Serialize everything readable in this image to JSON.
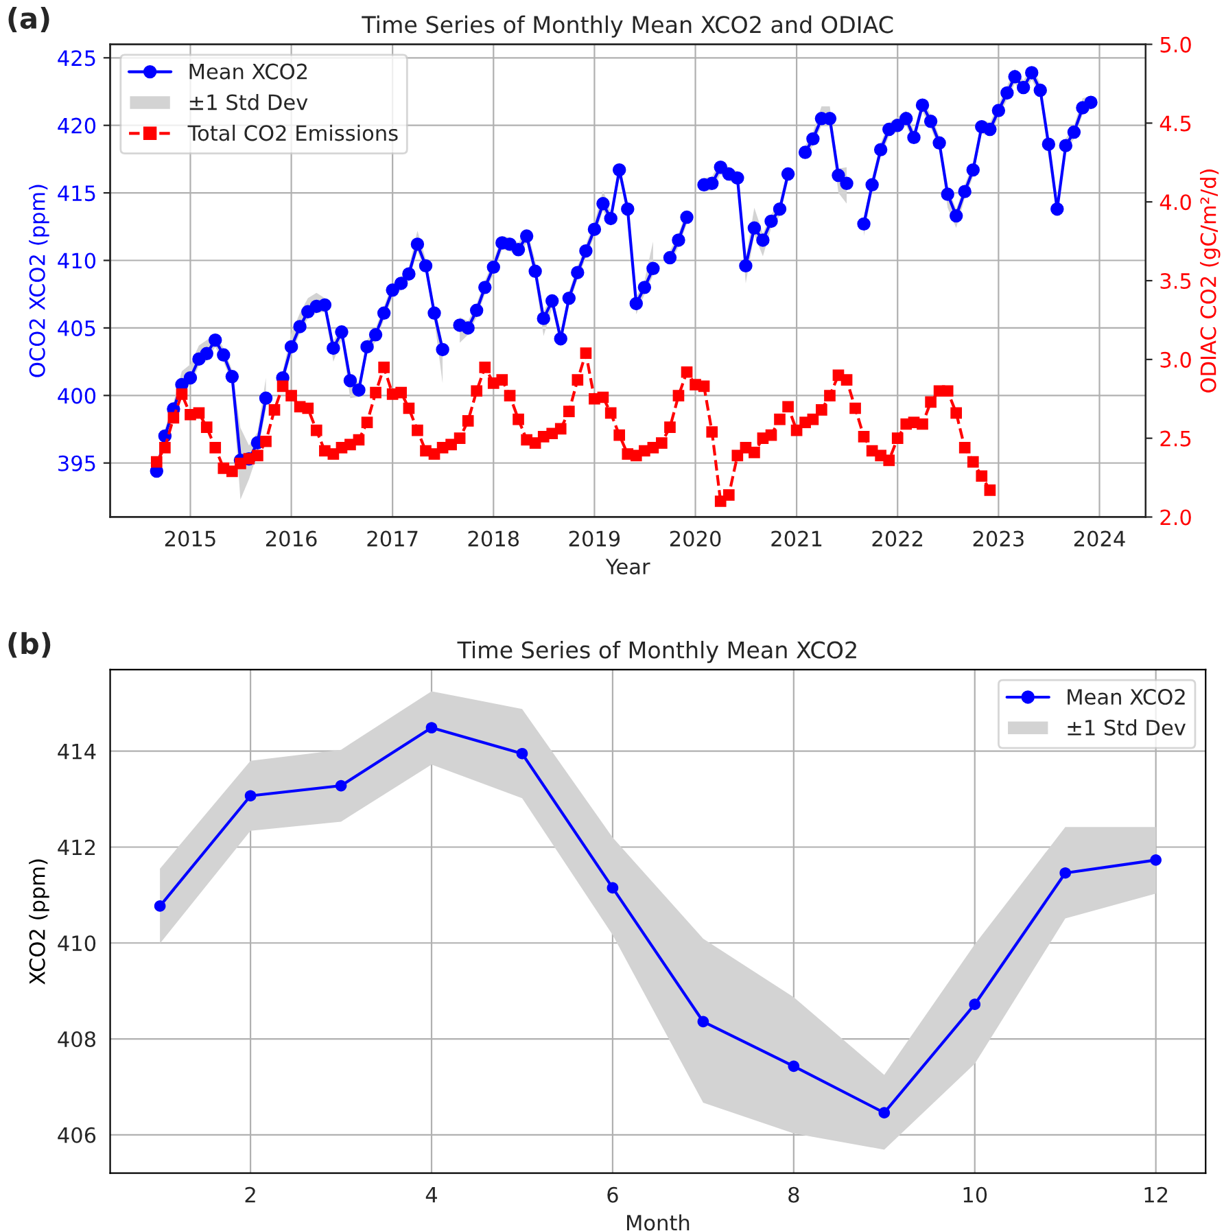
{
  "chart_data": [
    {
      "type": "line",
      "title": "Time Series of Monthly Mean XCO2 and ODIAC",
      "xlabel": "Year",
      "ylabel": "OCO2 XCO2 (ppm)",
      "y2label": "ODIAC CO2 (gC/m²/d)",
      "annotations": [
        "(a)"
      ],
      "xlim": [
        "2014-03-17",
        "2024-06-16"
      ],
      "xticks": [
        "2015",
        "2016",
        "2017",
        "2018",
        "2019",
        "2020",
        "2021",
        "2022",
        "2023",
        "2024"
      ],
      "ylim": [
        391,
        426
      ],
      "yticks": [
        395,
        400,
        405,
        410,
        415,
        420,
        425
      ],
      "y2lim": [
        2.0,
        5.0
      ],
      "y2ticks": [
        {
          "value": 2,
          "label": "2.0"
        },
        2.5,
        {
          "value": 3,
          "label": "3.0"
        },
        3.5,
        {
          "value": 4,
          "label": "4.0"
        },
        4.5,
        {
          "value": 5,
          "label": "5.0"
        }
      ],
      "grid": true,
      "legend": "top left",
      "series": [
        {
          "name": "Mean XCO2",
          "color": "#0000ff",
          "marker": "circle",
          "line_style": "solid",
          "x": [
            "2014-09",
            "2014-10",
            "2014-11",
            "2014-12",
            "2015-01",
            "2015-02",
            "2015-03",
            "2015-04",
            "2015-05",
            "2015-06",
            "2015-07",
            "2015-08",
            "2015-09",
            "2015-10",
            "2015-11",
            "2015-12",
            "2016-01",
            "2016-02",
            "2016-03",
            "2016-04",
            "2016-05",
            "2016-06",
            "2016-07",
            "2016-08",
            "2016-09",
            "2016-10",
            "2016-11",
            "2016-12",
            "2017-01",
            "2017-02",
            "2017-03",
            "2017-04",
            "2017-05",
            "2017-06",
            "2017-07",
            "2017-08",
            "2017-09",
            "2017-10",
            "2017-11",
            "2017-12",
            "2018-01",
            "2018-02",
            "2018-03",
            "2018-04",
            "2018-05",
            "2018-06",
            "2018-07",
            "2018-08",
            "2018-09",
            "2018-10",
            "2018-11",
            "2018-12",
            "2019-01",
            "2019-02",
            "2019-03",
            "2019-04",
            "2019-05",
            "2019-06",
            "2019-07",
            "2019-08",
            "2019-09",
            "2019-10",
            "2019-11",
            "2019-12",
            "2020-01",
            "2020-02",
            "2020-03",
            "2020-04",
            "2020-05",
            "2020-06",
            "2020-07",
            "2020-08",
            "2020-09",
            "2020-10",
            "2020-11",
            "2020-12",
            "2021-01",
            "2021-02",
            "2021-03",
            "2021-04",
            "2021-05",
            "2021-06",
            "2021-07",
            "2021-08",
            "2021-09",
            "2021-10",
            "2021-11",
            "2021-12",
            "2022-01",
            "2022-02",
            "2022-03",
            "2022-04",
            "2022-05",
            "2022-06",
            "2022-07",
            "2022-08",
            "2022-09",
            "2022-10",
            "2022-11",
            "2022-12",
            "2023-01",
            "2023-02",
            "2023-03",
            "2023-04",
            "2023-05",
            "2023-06",
            "2023-07",
            "2023-08",
            "2023-09",
            "2023-10",
            "2023-11",
            "2023-12"
          ],
          "values": [
            394.4,
            397.0,
            399.0,
            400.8,
            401.3,
            402.7,
            403.1,
            404.1,
            403.0,
            401.4,
            395.2,
            395.3,
            396.5,
            399.8,
            null,
            401.3,
            403.6,
            405.1,
            406.2,
            406.6,
            406.7,
            403.5,
            404.7,
            401.1,
            400.4,
            403.6,
            404.5,
            406.1,
            407.8,
            408.3,
            409.0,
            411.2,
            409.6,
            406.1,
            403.4,
            null,
            405.2,
            405.0,
            406.3,
            408.0,
            409.5,
            411.3,
            411.2,
            410.8,
            411.8,
            409.2,
            405.7,
            407.0,
            404.2,
            407.2,
            409.1,
            410.7,
            412.3,
            414.2,
            413.1,
            416.7,
            413.8,
            406.8,
            408.0,
            409.4,
            null,
            410.2,
            411.5,
            413.2,
            null,
            415.6,
            415.7,
            416.9,
            416.4,
            416.1,
            409.6,
            412.4,
            411.5,
            412.9,
            413.8,
            416.4,
            null,
            418.0,
            419.0,
            420.5,
            420.5,
            416.3,
            415.7,
            null,
            412.7,
            415.6,
            418.2,
            419.7,
            420.0,
            420.5,
            419.1,
            421.5,
            420.3,
            418.7,
            414.9,
            413.3,
            415.1,
            416.7,
            419.9,
            419.7,
            421.1,
            422.4,
            423.6,
            422.8,
            423.9,
            422.6,
            418.6,
            413.8,
            418.5,
            419.5,
            421.3,
            421.7
          ],
          "lower": [
            393.9,
            396.5,
            398.5,
            400.3,
            400.8,
            402.2,
            402.6,
            403.6,
            402.5,
            400.9,
            392.3,
            393.8,
            395.7,
            399.0,
            null,
            400.8,
            403.1,
            404.6,
            405.7,
            406.1,
            406.2,
            402.5,
            404.2,
            399.8,
            399.9,
            403.1,
            404.0,
            405.6,
            407.3,
            407.8,
            408.5,
            410.7,
            409.1,
            405.6,
            400.9,
            null,
            403.9,
            404.5,
            405.8,
            407.5,
            409.0,
            410.8,
            410.7,
            410.3,
            411.3,
            408.7,
            404.4,
            406.5,
            403.6,
            406.7,
            408.6,
            410.2,
            411.8,
            413.7,
            412.6,
            416.2,
            413.3,
            406.0,
            407.5,
            408.9,
            null,
            409.7,
            411.0,
            412.7,
            null,
            415.1,
            415.2,
            416.4,
            415.9,
            415.6,
            408.3,
            411.9,
            410.3,
            412.4,
            413.3,
            415.9,
            null,
            417.5,
            418.5,
            420.0,
            420.0,
            415.0,
            414.2,
            null,
            411.8,
            415.1,
            417.7,
            419.2,
            419.5,
            420.0,
            418.6,
            421.0,
            419.8,
            418.2,
            413.9,
            412.4,
            414.6,
            416.2,
            419.4,
            419.2,
            420.6,
            421.9,
            423.1,
            422.3,
            423.4,
            422.1,
            417.6,
            413.3,
            418.0,
            419.0,
            420.8,
            421.2
          ],
          "upper": [
            394.9,
            397.5,
            399.5,
            401.8,
            402.3,
            403.7,
            404.1,
            404.6,
            403.5,
            401.9,
            397.6,
            396.3,
            397.3,
            401.3,
            null,
            401.8,
            404.6,
            406.1,
            407.2,
            407.6,
            407.2,
            404.0,
            405.2,
            401.6,
            400.9,
            404.1,
            405.0,
            406.6,
            408.3,
            408.8,
            409.5,
            412.2,
            410.1,
            406.6,
            403.9,
            null,
            405.8,
            405.5,
            406.8,
            408.5,
            410.0,
            411.8,
            411.7,
            411.3,
            412.3,
            410.0,
            406.2,
            407.5,
            404.7,
            407.7,
            409.6,
            411.2,
            412.8,
            415.2,
            413.6,
            417.2,
            414.3,
            407.3,
            408.5,
            411.4,
            null,
            410.7,
            412.0,
            413.7,
            null,
            416.1,
            416.2,
            417.4,
            416.9,
            416.6,
            410.1,
            413.9,
            412.0,
            413.4,
            414.3,
            416.9,
            null,
            418.5,
            419.5,
            421.4,
            421.4,
            416.8,
            416.9,
            null,
            413.2,
            416.1,
            418.7,
            420.2,
            420.6,
            421.1,
            419.6,
            422.0,
            420.8,
            419.2,
            415.4,
            413.8,
            415.6,
            417.2,
            420.4,
            420.2,
            421.6,
            422.9,
            424.2,
            423.3,
            424.4,
            423.1,
            419.1,
            414.3,
            419.0,
            420.0,
            422.0,
            422.2
          ]
        },
        {
          "name": "±1 Std Dev",
          "type": "area",
          "color": "#d3d3d3"
        },
        {
          "name": "Total CO2 Emissions",
          "color": "#ff0000",
          "axis": "y2",
          "marker": "square",
          "line_style": "dashed",
          "x": [
            "2014-09",
            "2014-10",
            "2014-11",
            "2014-12",
            "2015-01",
            "2015-02",
            "2015-03",
            "2015-04",
            "2015-05",
            "2015-06",
            "2015-07",
            "2015-08",
            "2015-09",
            "2015-10",
            "2015-11",
            "2015-12",
            "2016-01",
            "2016-02",
            "2016-03",
            "2016-04",
            "2016-05",
            "2016-06",
            "2016-07",
            "2016-08",
            "2016-09",
            "2016-10",
            "2016-11",
            "2016-12",
            "2017-01",
            "2017-02",
            "2017-03",
            "2017-04",
            "2017-05",
            "2017-06",
            "2017-07",
            "2017-08",
            "2017-09",
            "2017-10",
            "2017-11",
            "2017-12",
            "2018-01",
            "2018-02",
            "2018-03",
            "2018-04",
            "2018-05",
            "2018-06",
            "2018-07",
            "2018-08",
            "2018-09",
            "2018-10",
            "2018-11",
            "2018-12",
            "2019-01",
            "2019-02",
            "2019-03",
            "2019-04",
            "2019-05",
            "2019-06",
            "2019-07",
            "2019-08",
            "2019-09",
            "2019-10",
            "2019-11",
            "2019-12",
            "2020-01",
            "2020-02",
            "2020-03",
            "2020-04",
            "2020-05",
            "2020-06",
            "2020-07",
            "2020-08",
            "2020-09",
            "2020-10",
            "2020-11",
            "2020-12",
            "2021-01",
            "2021-02",
            "2021-03",
            "2021-04",
            "2021-05",
            "2021-06",
            "2021-07",
            "2021-08",
            "2021-09",
            "2021-10",
            "2021-11",
            "2021-12",
            "2022-01",
            "2022-02",
            "2022-03",
            "2022-04",
            "2022-05",
            "2022-06",
            "2022-07",
            "2022-08",
            "2022-09",
            "2022-10",
            "2022-11",
            "2022-12"
          ],
          "values": [
            2.35,
            2.44,
            2.63,
            2.78,
            2.65,
            2.66,
            2.57,
            2.44,
            2.31,
            2.29,
            2.34,
            2.37,
            2.39,
            2.48,
            2.68,
            2.83,
            2.77,
            2.7,
            2.69,
            2.55,
            2.42,
            2.4,
            2.44,
            2.46,
            2.49,
            2.6,
            2.79,
            2.95,
            2.78,
            2.79,
            2.69,
            2.55,
            2.42,
            2.4,
            2.44,
            2.46,
            2.5,
            2.61,
            2.8,
            2.95,
            2.85,
            2.87,
            2.77,
            2.62,
            2.49,
            2.47,
            2.51,
            2.53,
            2.56,
            2.67,
            2.87,
            3.04,
            2.75,
            2.76,
            2.66,
            2.52,
            2.4,
            2.39,
            2.42,
            2.44,
            2.47,
            2.57,
            2.77,
            2.92,
            2.84,
            2.83,
            2.54,
            2.1,
            2.14,
            2.39,
            2.44,
            2.41,
            2.5,
            2.52,
            2.62,
            2.7,
            2.55,
            2.6,
            2.62,
            2.68,
            2.77,
            2.9,
            2.87,
            2.69,
            2.51,
            2.42,
            2.39,
            2.36,
            2.5,
            2.59,
            2.6,
            2.59,
            2.73,
            2.8,
            2.8,
            2.66,
            2.44,
            2.35,
            2.26,
            2.17
          ]
        }
      ]
    },
    {
      "type": "line",
      "title": "Time Series of Monthly Mean XCO2",
      "xlabel": "Month",
      "ylabel": "XCO2 (ppm)",
      "annotations": [
        "(b)"
      ],
      "xlim": [
        0.45,
        12.55
      ],
      "xticks": [
        2,
        4,
        6,
        8,
        10,
        12
      ],
      "ylim": [
        405.2,
        415.7
      ],
      "yticks": [
        406,
        408,
        410,
        412,
        414
      ],
      "grid": true,
      "legend": "top right",
      "series": [
        {
          "name": "Mean XCO2",
          "color": "#0000ff",
          "marker": "circle",
          "line_style": "solid",
          "x": [
            1,
            2,
            3,
            4,
            5,
            6,
            7,
            8,
            9,
            10,
            11,
            12
          ],
          "values": [
            410.77,
            413.07,
            413.28,
            414.49,
            413.95,
            411.15,
            408.36,
            407.43,
            406.46,
            408.72,
            411.46,
            411.73
          ],
          "lower": [
            409.99,
            412.34,
            412.53,
            413.72,
            413.02,
            410.17,
            406.67,
            406.03,
            405.69,
            407.48,
            410.51,
            411.03
          ],
          "upper": [
            411.55,
            413.8,
            414.03,
            415.25,
            414.88,
            412.2,
            410.09,
            408.87,
            407.25,
            409.97,
            412.42,
            412.42
          ]
        },
        {
          "name": "±1 Std Dev",
          "type": "area",
          "color": "#d3d3d3"
        }
      ]
    }
  ]
}
